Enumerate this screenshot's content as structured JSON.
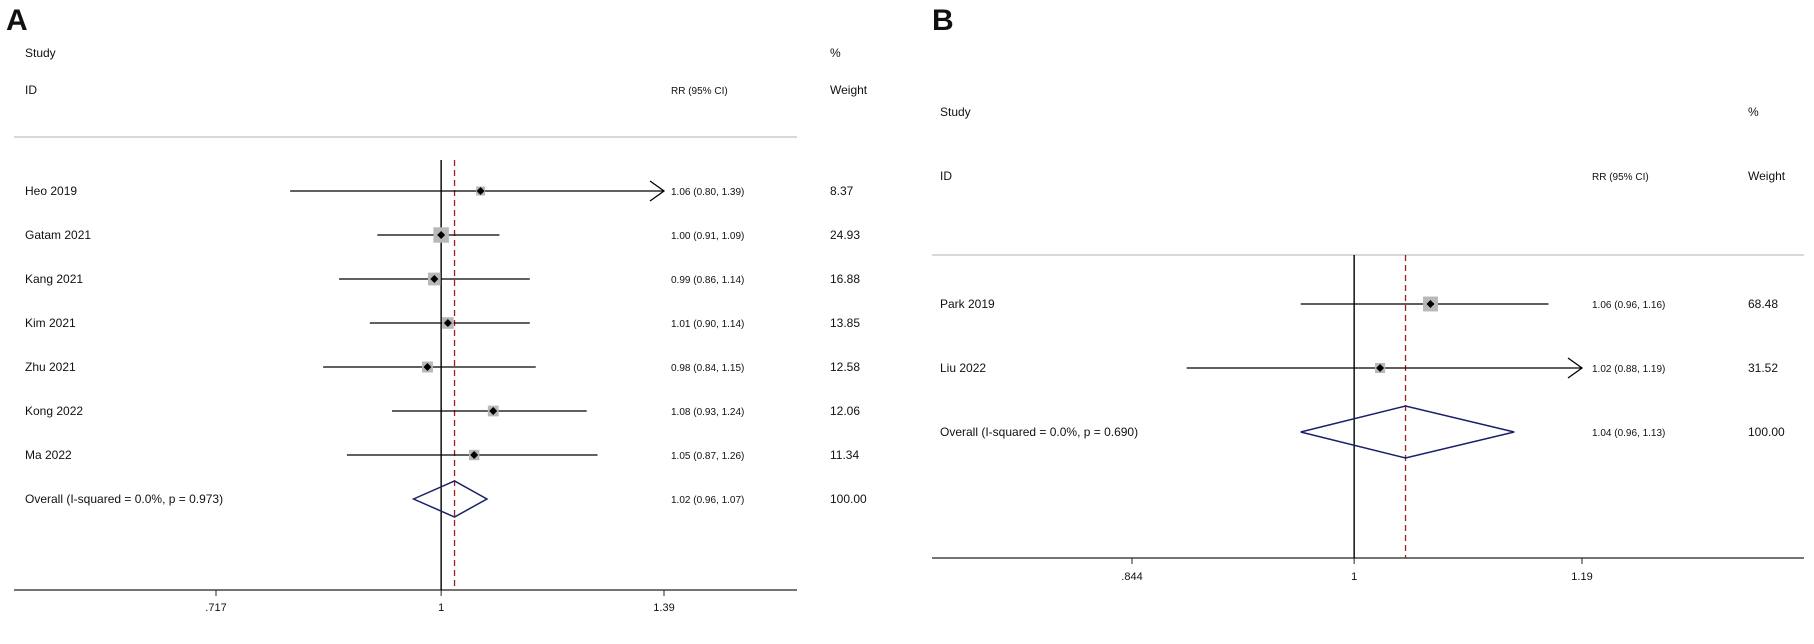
{
  "chart_data": [
    {
      "type": "forest",
      "panel_label": "A",
      "headers": {
        "study": "Study",
        "id": "ID",
        "rr": "RR (95% CI)",
        "pct": "%",
        "weight": "Weight"
      },
      "measure": "RR",
      "x_scale": "log",
      "xlim": [
        0.6,
        1.65
      ],
      "ticks": [
        {
          "value": 0.717,
          "label": ".717"
        },
        {
          "value": 1,
          "label": "1"
        },
        {
          "value": 1.39,
          "label": "1.39"
        }
      ],
      "studies": [
        {
          "name": "Heo 2019",
          "rr": 1.06,
          "lower": 0.8,
          "upper": 1.39,
          "ci_text": "1.06 (0.80, 1.39)",
          "weight": "8.37",
          "weight_value": 8.37,
          "arrow_right": true
        },
        {
          "name": "Gatam 2021",
          "rr": 1.0,
          "lower": 0.91,
          "upper": 1.09,
          "ci_text": "1.00 (0.91, 1.09)",
          "weight": "24.93",
          "weight_value": 24.93
        },
        {
          "name": "Kang 2021",
          "rr": 0.99,
          "lower": 0.86,
          "upper": 1.14,
          "ci_text": "0.99 (0.86, 1.14)",
          "weight": "16.88",
          "weight_value": 16.88
        },
        {
          "name": "Kim 2021",
          "rr": 1.01,
          "lower": 0.9,
          "upper": 1.14,
          "ci_text": "1.01 (0.90, 1.14)",
          "weight": "13.85",
          "weight_value": 13.85
        },
        {
          "name": "Zhu 2021",
          "rr": 0.98,
          "lower": 0.84,
          "upper": 1.15,
          "ci_text": "0.98 (0.84, 1.15)",
          "weight": "12.58",
          "weight_value": 12.58
        },
        {
          "name": "Kong 2022",
          "rr": 1.08,
          "lower": 0.93,
          "upper": 1.24,
          "ci_text": "1.08 (0.93, 1.24)",
          "weight": "12.06",
          "weight_value": 12.06
        },
        {
          "name": "Ma 2022",
          "rr": 1.05,
          "lower": 0.87,
          "upper": 1.26,
          "ci_text": "1.05 (0.87, 1.26)",
          "weight": "11.34",
          "weight_value": 11.34
        }
      ],
      "overall": {
        "label": "Overall  (I-squared = 0.0%, p = 0.973)",
        "rr": 1.02,
        "lower": 0.96,
        "upper": 1.07,
        "ci_text": "1.02 (0.96, 1.07)",
        "weight": "100.00"
      },
      "colors": {
        "diamond": "#1a1f6b",
        "overall_line": "#a02020",
        "null_line": "#000000",
        "square": "#b8b8b8"
      }
    },
    {
      "type": "forest",
      "panel_label": "B",
      "headers": {
        "study": "Study",
        "id": "ID",
        "rr": "RR (95% CI)",
        "pct": "%",
        "weight": "Weight"
      },
      "measure": "RR",
      "x_scale": "log",
      "xlim": [
        0.8,
        1.3
      ],
      "ticks": [
        {
          "value": 0.844,
          "label": ".844"
        },
        {
          "value": 1,
          "label": "1"
        },
        {
          "value": 1.19,
          "label": "1.19"
        }
      ],
      "studies": [
        {
          "name": "Park 2019",
          "rr": 1.06,
          "lower": 0.96,
          "upper": 1.16,
          "ci_text": "1.06 (0.96, 1.16)",
          "weight": "68.48",
          "weight_value": 68.48
        },
        {
          "name": "Liu 2022",
          "rr": 1.02,
          "lower": 0.88,
          "upper": 1.19,
          "ci_text": "1.02 (0.88, 1.19)",
          "weight": "31.52",
          "weight_value": 31.52,
          "arrow_right": true
        }
      ],
      "overall": {
        "label": "Overall  (I-squared = 0.0%, p = 0.690)",
        "rr": 1.04,
        "lower": 0.96,
        "upper": 1.13,
        "ci_text": "1.04 (0.96, 1.13)",
        "weight": "100.00"
      },
      "colors": {
        "diamond": "#1a1f6b",
        "overall_line": "#a02020",
        "null_line": "#000000",
        "square": "#b8b8b8"
      }
    }
  ]
}
